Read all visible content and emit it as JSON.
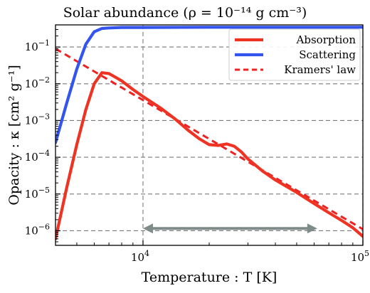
{
  "chart_data": {
    "type": "line",
    "title": "Solar abundance (ρ = 10⁻¹⁴ g cm⁻³)",
    "xlabel": "Temperature : T [K]",
    "ylabel": "Opacity : κ [cm² g⁻¹]",
    "xscale": "log",
    "yscale": "log",
    "xlim": [
      4000,
      100000
    ],
    "ylim": [
      4e-07,
      0.4
    ],
    "grid": "dashed",
    "legend_position": "top-right",
    "x_ticks": [
      {
        "value": 10000,
        "base": "10",
        "exp": "4"
      },
      {
        "value": 100000,
        "base": "10",
        "exp": "5"
      }
    ],
    "y_ticks": [
      {
        "value": 1e-06,
        "base": "10",
        "exp": "−6"
      },
      {
        "value": 1e-05,
        "base": "10",
        "exp": "−5"
      },
      {
        "value": 0.0001,
        "base": "10",
        "exp": "−4"
      },
      {
        "value": 0.001,
        "base": "10",
        "exp": "−3"
      },
      {
        "value": 0.01,
        "base": "10",
        "exp": "−2"
      },
      {
        "value": 0.1,
        "base": "10",
        "exp": "−1"
      }
    ],
    "series": [
      {
        "name": "Absorption",
        "color": "#ee3322",
        "style": "solid",
        "points": [
          [
            4000,
            6e-07
          ],
          [
            4500,
            1.5e-05
          ],
          [
            5000,
            0.00022
          ],
          [
            5500,
            0.002
          ],
          [
            6000,
            0.01
          ],
          [
            6500,
            0.02
          ],
          [
            7000,
            0.019
          ],
          [
            7500,
            0.015
          ],
          [
            8000,
            0.012
          ],
          [
            9000,
            0.007
          ],
          [
            10000,
            0.0045
          ],
          [
            12000,
            0.0022
          ],
          [
            14000,
            0.0011
          ],
          [
            16000,
            0.00055
          ],
          [
            18000,
            0.00032
          ],
          [
            20000,
            0.00022
          ],
          [
            22000,
            0.00021
          ],
          [
            24000,
            0.00023
          ],
          [
            26000,
            0.0002
          ],
          [
            28000,
            0.00014
          ],
          [
            30000,
            9e-05
          ],
          [
            35000,
            4.2e-05
          ],
          [
            40000,
            2.4e-05
          ],
          [
            50000,
            1.1e-05
          ],
          [
            60000,
            5.5e-06
          ],
          [
            70000,
            3.1e-06
          ],
          [
            80000,
            1.9e-06
          ],
          [
            90000,
            1.2e-06
          ],
          [
            100000,
            7e-07
          ]
        ]
      },
      {
        "name": "Scattering",
        "color": "#3355ee",
        "style": "solid",
        "points": [
          [
            4000,
            0.00025
          ],
          [
            4500,
            0.003
          ],
          [
            5000,
            0.025
          ],
          [
            5500,
            0.12
          ],
          [
            6000,
            0.26
          ],
          [
            6500,
            0.32
          ],
          [
            7000,
            0.33
          ],
          [
            8000,
            0.34
          ],
          [
            10000,
            0.34
          ],
          [
            20000,
            0.345
          ],
          [
            50000,
            0.345
          ],
          [
            100000,
            0.345
          ]
        ]
      },
      {
        "name": "Kramers' law",
        "color": "#ee2222",
        "style": "dashed",
        "points": [
          [
            4000,
            0.09
          ],
          [
            100000,
            1.1e-06
          ]
        ]
      }
    ],
    "annotation": {
      "type": "double-arrow",
      "color": "#7f8c8a",
      "from": [
        10000,
        1.15e-06
      ],
      "to": [
        62000,
        1.15e-06
      ]
    }
  }
}
